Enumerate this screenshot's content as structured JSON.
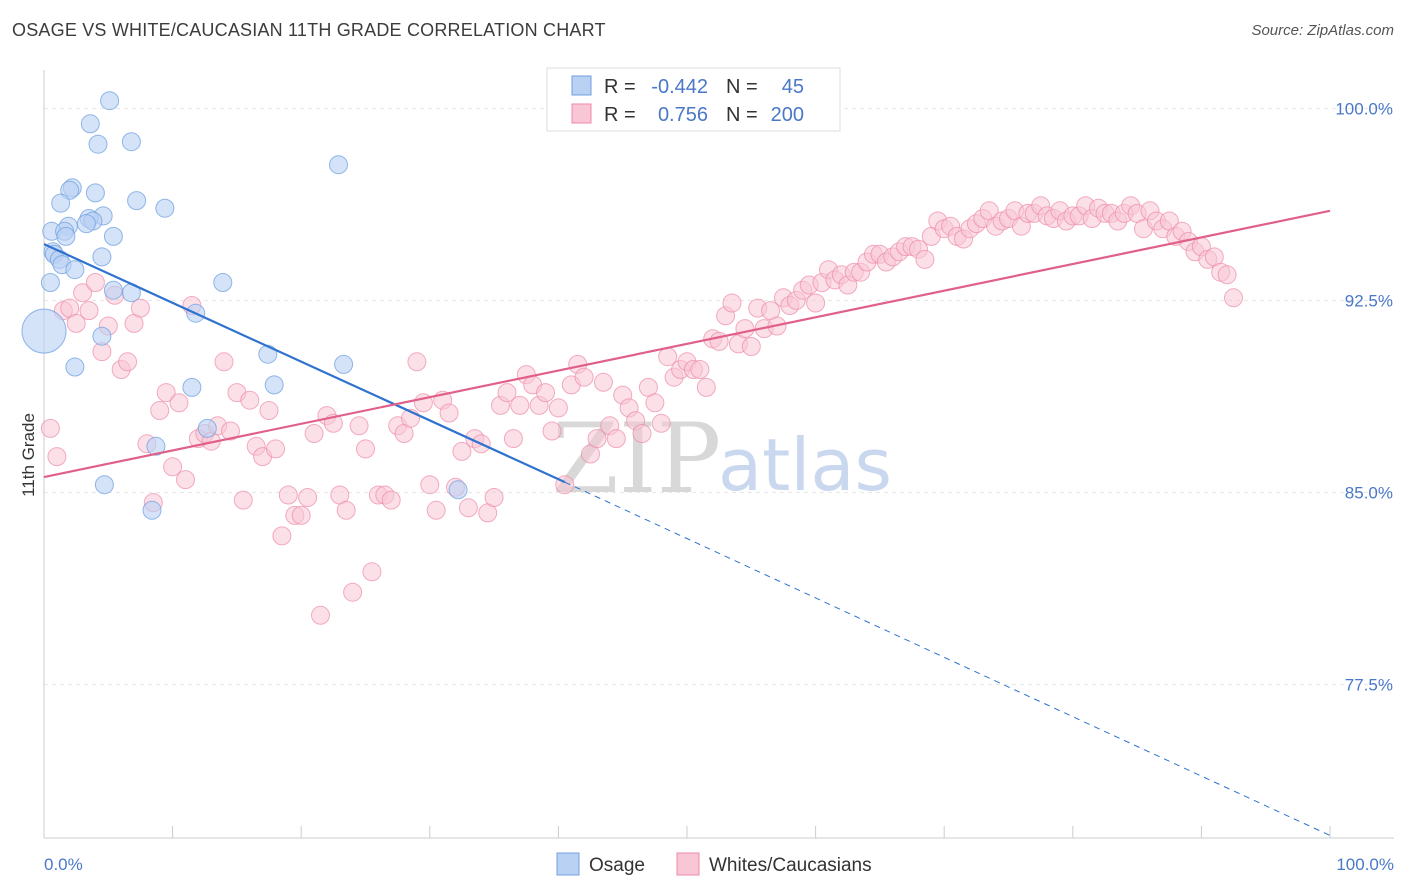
{
  "header": {
    "title": "OSAGE VS WHITE/CAUCASIAN 11TH GRADE CORRELATION CHART",
    "source": "Source: ZipAtlas.com"
  },
  "watermark": {
    "part1": "ZIP",
    "part2": "atlas"
  },
  "colors": {
    "osage": "#6fa0e0",
    "osage_fill": "#b9d1f3",
    "osage_line": "#2f72d0",
    "white": "#ee8aa8",
    "white_fill": "#f8c6d5",
    "white_line": "#e0608a",
    "axis_label": "#4a78c8",
    "grid": "#e5e5e5"
  },
  "legend": {
    "rows": [
      {
        "r_label": "R =",
        "r_value": "-0.442",
        "n_label": "N =",
        "n_value": "45"
      },
      {
        "r_label": "R =",
        "r_value": "0.756",
        "n_label": "N =",
        "n_value": "200"
      }
    ]
  },
  "bottom_legend": [
    {
      "label": "Osage"
    },
    {
      "label": "Whites/Caucasians"
    }
  ],
  "chart_data": {
    "type": "scatter",
    "xlabel": "",
    "ylabel": "11th Grade",
    "xlim": [
      0,
      100
    ],
    "ylim": [
      71.5,
      101.5
    ],
    "x_tick_labels": [
      "0.0%",
      "100.0%"
    ],
    "y_ticks": [
      77.5,
      85.0,
      92.5,
      100.0
    ],
    "y_tick_labels": [
      "77.5%",
      "85.0%",
      "92.5%",
      "100.0%"
    ],
    "grid": true,
    "legend_position": "top-center",
    "series": [
      {
        "name": "Osage",
        "r": -0.442,
        "n": 45,
        "trend": {
          "x0": 0,
          "y0": 94.7,
          "x1": 40.5,
          "y1": 85.4,
          "dash_x1": 100,
          "dash_y1": 71.6
        },
        "points": [
          [
            5.1,
            100.3
          ],
          [
            3.6,
            99.4
          ],
          [
            4.2,
            98.6
          ],
          [
            6.8,
            98.7
          ],
          [
            22.9,
            97.8
          ],
          [
            2.2,
            96.9
          ],
          [
            2.0,
            96.8
          ],
          [
            4.0,
            96.7
          ],
          [
            7.2,
            96.4
          ],
          [
            1.3,
            96.3
          ],
          [
            9.4,
            96.1
          ],
          [
            4.6,
            95.8
          ],
          [
            3.5,
            95.7
          ],
          [
            3.8,
            95.6
          ],
          [
            3.3,
            95.5
          ],
          [
            1.9,
            95.4
          ],
          [
            0.6,
            95.2
          ],
          [
            1.6,
            95.2
          ],
          [
            5.4,
            95.0
          ],
          [
            1.7,
            95.0
          ],
          [
            0.7,
            94.4
          ],
          [
            0.8,
            94.3
          ],
          [
            4.5,
            94.2
          ],
          [
            1.2,
            94.1
          ],
          [
            1.4,
            93.9
          ],
          [
            2.4,
            93.7
          ],
          [
            0.5,
            93.2
          ],
          [
            13.9,
            93.2
          ],
          [
            5.4,
            92.9
          ],
          [
            6.8,
            92.8
          ],
          [
            11.8,
            92.0
          ],
          [
            0.0,
            91.3
          ],
          [
            4.5,
            91.1
          ],
          [
            17.4,
            90.4
          ],
          [
            23.3,
            90.0
          ],
          [
            2.4,
            89.9
          ],
          [
            17.9,
            89.2
          ],
          [
            11.5,
            89.1
          ],
          [
            12.7,
            87.5
          ],
          [
            8.7,
            86.8
          ],
          [
            32.2,
            85.1
          ],
          [
            4.7,
            85.3
          ],
          [
            8.4,
            84.3
          ]
        ]
      },
      {
        "name": "Whites/Caucasians",
        "r": 0.756,
        "n": 200,
        "trend": {
          "x0": 0,
          "y0": 85.6,
          "x1": 100,
          "y1": 96.0
        },
        "points": [
          [
            0.5,
            87.5
          ],
          [
            1.0,
            86.4
          ],
          [
            1.5,
            92.1
          ],
          [
            2.0,
            92.2
          ],
          [
            2.5,
            91.6
          ],
          [
            3.0,
            92.8
          ],
          [
            3.5,
            92.1
          ],
          [
            4.0,
            93.2
          ],
          [
            4.5,
            90.5
          ],
          [
            5.0,
            91.5
          ],
          [
            5.5,
            92.7
          ],
          [
            6.0,
            89.8
          ],
          [
            6.5,
            90.1
          ],
          [
            7.0,
            91.6
          ],
          [
            7.5,
            92.2
          ],
          [
            8.0,
            86.9
          ],
          [
            8.5,
            84.6
          ],
          [
            9.0,
            88.2
          ],
          [
            9.5,
            88.9
          ],
          [
            10.0,
            86.0
          ],
          [
            10.5,
            88.5
          ],
          [
            11.0,
            85.5
          ],
          [
            11.5,
            92.3
          ],
          [
            12.0,
            87.1
          ],
          [
            12.5,
            87.3
          ],
          [
            13.0,
            87.0
          ],
          [
            13.5,
            87.6
          ],
          [
            14.0,
            90.1
          ],
          [
            14.5,
            87.4
          ],
          [
            15.0,
            88.9
          ],
          [
            15.5,
            84.7
          ],
          [
            16.0,
            88.6
          ],
          [
            16.5,
            86.8
          ],
          [
            17.0,
            86.4
          ],
          [
            17.5,
            88.2
          ],
          [
            18.0,
            86.7
          ],
          [
            18.5,
            83.3
          ],
          [
            19.0,
            84.9
          ],
          [
            19.5,
            84.1
          ],
          [
            20.0,
            84.1
          ],
          [
            20.5,
            84.8
          ],
          [
            21.0,
            87.3
          ],
          [
            21.5,
            80.2
          ],
          [
            22.0,
            88.0
          ],
          [
            22.5,
            87.7
          ],
          [
            23.0,
            84.9
          ],
          [
            23.5,
            84.3
          ],
          [
            24.0,
            81.1
          ],
          [
            24.5,
            87.6
          ],
          [
            25.0,
            86.7
          ],
          [
            25.5,
            81.9
          ],
          [
            26.0,
            84.9
          ],
          [
            26.5,
            84.9
          ],
          [
            27.0,
            84.7
          ],
          [
            27.5,
            87.6
          ],
          [
            28.0,
            87.3
          ],
          [
            28.5,
            87.9
          ],
          [
            29.0,
            90.1
          ],
          [
            29.5,
            88.5
          ],
          [
            30.0,
            85.3
          ],
          [
            30.5,
            84.3
          ],
          [
            31.0,
            88.6
          ],
          [
            31.5,
            88.1
          ],
          [
            32.0,
            85.2
          ],
          [
            32.5,
            86.6
          ],
          [
            33.0,
            84.4
          ],
          [
            33.5,
            87.1
          ],
          [
            34.0,
            86.9
          ],
          [
            34.5,
            84.2
          ],
          [
            35.0,
            84.8
          ],
          [
            35.5,
            88.4
          ],
          [
            36.0,
            88.9
          ],
          [
            36.5,
            87.1
          ],
          [
            37.0,
            88.4
          ],
          [
            37.5,
            89.6
          ],
          [
            38.0,
            89.2
          ],
          [
            38.5,
            88.4
          ],
          [
            39.0,
            88.9
          ],
          [
            39.5,
            87.4
          ],
          [
            40.0,
            88.3
          ],
          [
            40.5,
            85.3
          ],
          [
            41.0,
            89.2
          ],
          [
            41.5,
            90.0
          ],
          [
            42.0,
            89.5
          ],
          [
            42.5,
            86.5
          ],
          [
            43.0,
            87.1
          ],
          [
            43.5,
            89.3
          ],
          [
            44.0,
            87.6
          ],
          [
            44.5,
            87.1
          ],
          [
            45.0,
            88.8
          ],
          [
            45.5,
            88.3
          ],
          [
            46.0,
            87.8
          ],
          [
            46.5,
            87.3
          ],
          [
            47.0,
            89.1
          ],
          [
            47.5,
            88.5
          ],
          [
            48.0,
            87.7
          ],
          [
            48.5,
            90.3
          ],
          [
            49.0,
            89.5
          ],
          [
            49.5,
            89.8
          ],
          [
            50.0,
            90.1
          ],
          [
            50.5,
            89.8
          ],
          [
            51.0,
            89.8
          ],
          [
            51.5,
            89.1
          ],
          [
            52.0,
            91.0
          ],
          [
            52.5,
            90.9
          ],
          [
            53.0,
            91.9
          ],
          [
            53.5,
            92.4
          ],
          [
            54.0,
            90.8
          ],
          [
            54.5,
            91.4
          ],
          [
            55.0,
            90.7
          ],
          [
            55.5,
            92.2
          ],
          [
            56.0,
            91.4
          ],
          [
            56.5,
            92.1
          ],
          [
            57.0,
            91.5
          ],
          [
            57.5,
            92.6
          ],
          [
            58.0,
            92.3
          ],
          [
            58.5,
            92.5
          ],
          [
            59.0,
            92.9
          ],
          [
            59.5,
            93.1
          ],
          [
            60.0,
            92.4
          ],
          [
            60.5,
            93.2
          ],
          [
            61.0,
            93.7
          ],
          [
            61.5,
            93.3
          ],
          [
            62.0,
            93.5
          ],
          [
            62.5,
            93.1
          ],
          [
            63.0,
            93.6
          ],
          [
            63.5,
            93.6
          ],
          [
            64.0,
            94.0
          ],
          [
            64.5,
            94.3
          ],
          [
            65.0,
            94.3
          ],
          [
            65.5,
            94.0
          ],
          [
            66.0,
            94.2
          ],
          [
            66.5,
            94.4
          ],
          [
            67.0,
            94.6
          ],
          [
            67.5,
            94.6
          ],
          [
            68.0,
            94.5
          ],
          [
            68.5,
            94.1
          ],
          [
            69.0,
            95.0
          ],
          [
            69.5,
            95.6
          ],
          [
            70.0,
            95.3
          ],
          [
            70.5,
            95.4
          ],
          [
            71.0,
            95.0
          ],
          [
            71.5,
            94.9
          ],
          [
            72.0,
            95.3
          ],
          [
            72.5,
            95.5
          ],
          [
            73.0,
            95.7
          ],
          [
            73.5,
            96.0
          ],
          [
            74.0,
            95.4
          ],
          [
            74.5,
            95.6
          ],
          [
            75.0,
            95.7
          ],
          [
            75.5,
            96.0
          ],
          [
            76.0,
            95.4
          ],
          [
            76.5,
            95.9
          ],
          [
            77.0,
            95.9
          ],
          [
            77.5,
            96.2
          ],
          [
            78.0,
            95.8
          ],
          [
            78.5,
            95.7
          ],
          [
            79.0,
            96.0
          ],
          [
            79.5,
            95.6
          ],
          [
            80.0,
            95.8
          ],
          [
            80.5,
            95.8
          ],
          [
            81.0,
            96.2
          ],
          [
            81.5,
            95.7
          ],
          [
            82.0,
            96.1
          ],
          [
            82.5,
            95.9
          ],
          [
            83.0,
            95.9
          ],
          [
            83.5,
            95.6
          ],
          [
            84.0,
            95.9
          ],
          [
            84.5,
            96.2
          ],
          [
            85.0,
            95.9
          ],
          [
            85.5,
            95.3
          ],
          [
            86.0,
            96.0
          ],
          [
            86.5,
            95.6
          ],
          [
            87.0,
            95.3
          ],
          [
            87.5,
            95.6
          ],
          [
            88.0,
            95.0
          ],
          [
            88.5,
            95.2
          ],
          [
            89.0,
            94.8
          ],
          [
            89.5,
            94.4
          ],
          [
            90.0,
            94.6
          ],
          [
            90.5,
            94.1
          ],
          [
            91.0,
            94.2
          ],
          [
            91.5,
            93.6
          ],
          [
            92.0,
            93.5
          ],
          [
            92.5,
            92.6
          ]
        ]
      }
    ]
  }
}
